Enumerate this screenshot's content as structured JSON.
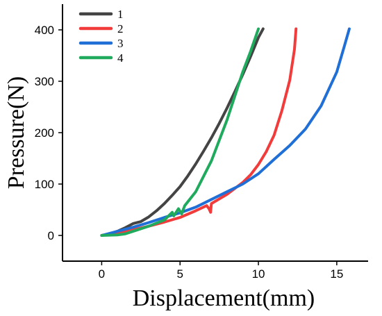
{
  "chart_data": {
    "type": "line",
    "title": "",
    "xlabel": "Displacement(mm)",
    "ylabel": "Pressure(N)",
    "xlim": [
      -2.5,
      17
    ],
    "ylim": [
      -50,
      450
    ],
    "xticks": [
      0,
      5,
      10,
      15
    ],
    "yticks": [
      0,
      100,
      200,
      300,
      400
    ],
    "grid": false,
    "legend_position": "top-left",
    "series": [
      {
        "name": "1",
        "color": "#444444",
        "points": [
          [
            0,
            0
          ],
          [
            0.5,
            3
          ],
          [
            1,
            8
          ],
          [
            1.5,
            15
          ],
          [
            2,
            23
          ],
          [
            2.5,
            27
          ],
          [
            3,
            36
          ],
          [
            3.5,
            48
          ],
          [
            4,
            62
          ],
          [
            4.5,
            78
          ],
          [
            5,
            95
          ],
          [
            5.5,
            116
          ],
          [
            6,
            139
          ],
          [
            6.5,
            164
          ],
          [
            7,
            190
          ],
          [
            7.5,
            218
          ],
          [
            8,
            248
          ],
          [
            8.5,
            280
          ],
          [
            9,
            313
          ],
          [
            9.5,
            348
          ],
          [
            10,
            385
          ],
          [
            10.3,
            402
          ]
        ]
      },
      {
        "name": "2",
        "color": "#f23c3c",
        "points": [
          [
            0,
            0
          ],
          [
            1,
            5
          ],
          [
            2,
            11
          ],
          [
            3,
            18
          ],
          [
            4,
            26
          ],
          [
            5,
            35
          ],
          [
            6,
            48
          ],
          [
            6.7,
            58
          ],
          [
            6.85,
            52
          ],
          [
            6.95,
            45
          ],
          [
            7,
            62
          ],
          [
            8,
            80
          ],
          [
            9,
            103
          ],
          [
            9.5,
            118
          ],
          [
            10,
            138
          ],
          [
            10.5,
            163
          ],
          [
            11,
            195
          ],
          [
            11.5,
            243
          ],
          [
            12,
            302
          ],
          [
            12.3,
            362
          ],
          [
            12.4,
            402
          ]
        ]
      },
      {
        "name": "3",
        "color": "#1f6fd6",
        "points": [
          [
            0,
            0
          ],
          [
            1,
            8
          ],
          [
            2,
            16
          ],
          [
            3,
            25
          ],
          [
            4,
            35
          ],
          [
            5,
            44
          ],
          [
            6,
            55
          ],
          [
            7,
            70
          ],
          [
            8,
            85
          ],
          [
            9,
            100
          ],
          [
            10,
            120
          ],
          [
            11,
            148
          ],
          [
            12,
            175
          ],
          [
            13,
            207
          ],
          [
            14,
            252
          ],
          [
            15,
            318
          ],
          [
            15.5,
            370
          ],
          [
            15.8,
            402
          ]
        ]
      },
      {
        "name": "4",
        "color": "#1faa5e",
        "points": [
          [
            0,
            0
          ],
          [
            1,
            1
          ],
          [
            1.5,
            3
          ],
          [
            2,
            8
          ],
          [
            3,
            18
          ],
          [
            4,
            30
          ],
          [
            4.5,
            45
          ],
          [
            4.6,
            38
          ],
          [
            4.9,
            52
          ],
          [
            5.1,
            42
          ],
          [
            5.3,
            58
          ],
          [
            6,
            85
          ],
          [
            7,
            145
          ],
          [
            8,
            225
          ],
          [
            9,
            318
          ],
          [
            9.5,
            358
          ],
          [
            10,
            402
          ]
        ]
      }
    ]
  }
}
